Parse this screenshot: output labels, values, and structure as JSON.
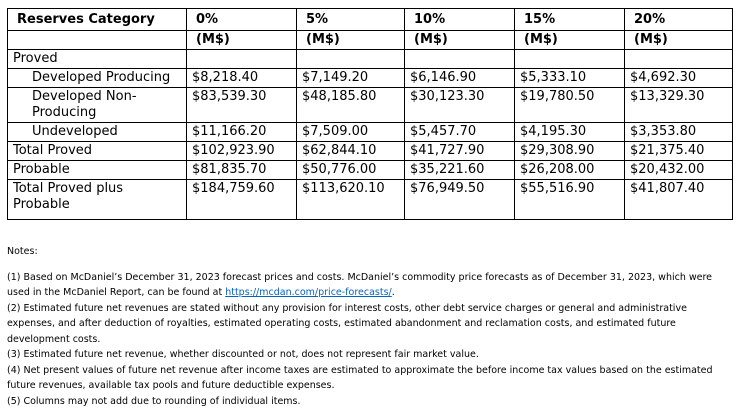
{
  "table": {
    "discount_headers": [
      "Reserves Category",
      "0%",
      "5%",
      "10%",
      "15%",
      "20%"
    ],
    "unit_headers": [
      "",
      "(M$)",
      "(M$)",
      "(M$)",
      "(M$)",
      "(M$)"
    ],
    "rows": [
      {
        "label": "Proved",
        "indent": false,
        "values": [
          "",
          "",
          "",
          "",
          ""
        ]
      },
      {
        "label": "Developed Producing",
        "indent": true,
        "values": [
          "$8,218.40",
          "$7,149.20",
          "$6,146.90",
          "$5,333.10",
          "$4,692.30"
        ]
      },
      {
        "label": "Developed Non-Producing",
        "indent": true,
        "values": [
          "$83,539.30",
          "$48,185.80",
          "$30,123.30",
          "$19,780.50",
          "$13,329.30"
        ]
      },
      {
        "label": "Undeveloped",
        "indent": true,
        "values": [
          "$11,166.20",
          "$7,509.00",
          "$5,457.70",
          "$4,195.30",
          "$3,353.80"
        ]
      },
      {
        "label": "Total Proved",
        "indent": false,
        "values": [
          "$102,923.90",
          "$62,844.10",
          "$41,727.90",
          "$29,308.90",
          "$21,375.40"
        ]
      },
      {
        "label": "Probable",
        "indent": false,
        "values": [
          "$81,835.70",
          "$50,776.00",
          "$35,221.60",
          "$26,208.00",
          "$20,432.00"
        ]
      },
      {
        "label": "Total Proved plus Probable",
        "indent": false,
        "values": [
          "$184,759.60",
          "$113,620.10",
          "$76,949.50",
          "$55,516.90",
          "$41,807.40"
        ]
      }
    ]
  },
  "notes": {
    "title": "Notes:",
    "note1": {
      "before": "(1) Based on McDaniel’s December 31, 2023 forecast prices and costs. McDaniel’s commodity price forecasts as of December 31, 2023, which were used in the McDaniel Report, can be found at ",
      "link_text": "https://mcdan.com/price-forecasts/",
      "after": "."
    },
    "note2": "(2) Estimated future net revenues are stated without any provision for interest costs, other debt service charges or general and administrative expenses, and after deduction of royalties, estimated operating costs, estimated abandonment and reclamation costs, and estimated future development costs.",
    "note3": "(3) Estimated future net revenue, whether discounted or not, does not represent fair market value.",
    "note4": "(4) Net present values of future net revenue after income taxes are estimated to approximate the before income tax values based on the estimated future revenues, available tax pools and future deductible expenses.",
    "note5": "(5) Columns may not add due to rounding of individual items."
  },
  "colors": {
    "link": "#0563C1",
    "border": "#000000",
    "text": "#000000"
  }
}
